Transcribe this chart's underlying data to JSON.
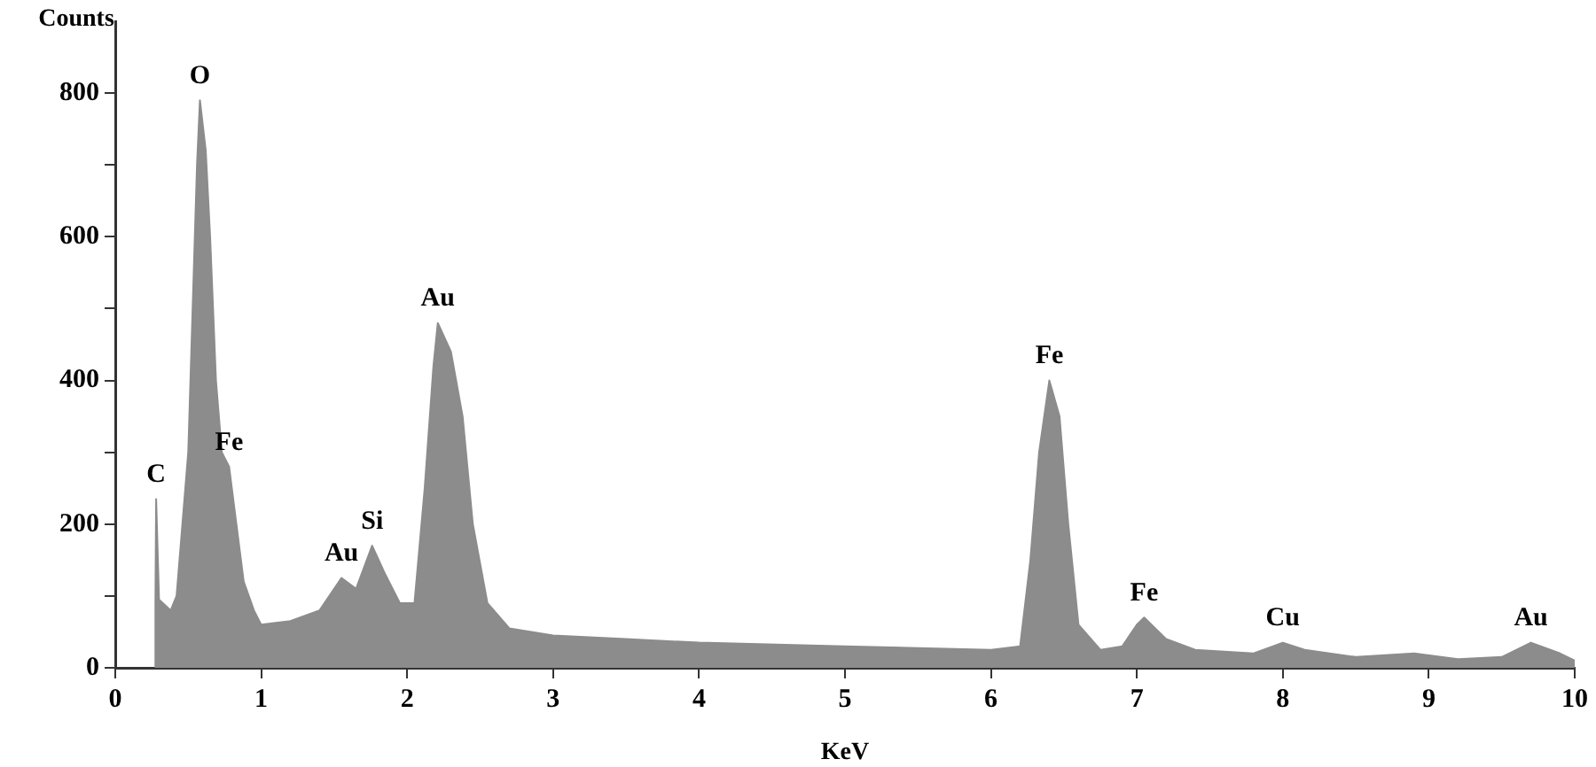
{
  "chart_data": {
    "type": "area",
    "xlabel": "KeV",
    "ylabel": "Counts",
    "x": [
      0.27,
      0.275,
      0.28,
      0.3,
      0.38,
      0.42,
      0.5,
      0.53,
      0.56,
      0.58,
      0.62,
      0.65,
      0.69,
      0.73,
      0.78,
      0.83,
      0.88,
      0.95,
      1.0,
      1.2,
      1.4,
      1.55,
      1.65,
      1.76,
      1.85,
      1.95,
      2.05,
      2.12,
      2.18,
      2.21,
      2.3,
      2.38,
      2.45,
      2.55,
      2.7,
      3.0,
      3.5,
      4.0,
      5.0,
      6.0,
      6.2,
      6.27,
      6.33,
      6.4,
      6.47,
      6.53,
      6.6,
      6.75,
      6.9,
      7.0,
      7.05,
      7.2,
      7.4,
      7.8,
      8.0,
      8.15,
      8.5,
      8.9,
      9.2,
      9.5,
      9.7,
      9.9,
      10.0
    ],
    "series": [
      {
        "color": "#8c8c8c",
        "values": [
          0,
          90,
          235,
          95,
          80,
          100,
          300,
          500,
          700,
          790,
          720,
          600,
          400,
          300,
          280,
          200,
          120,
          80,
          60,
          65,
          80,
          125,
          110,
          170,
          130,
          90,
          90,
          250,
          420,
          480,
          440,
          350,
          200,
          90,
          55,
          45,
          40,
          35,
          30,
          25,
          30,
          150,
          300,
          400,
          350,
          200,
          60,
          25,
          30,
          60,
          70,
          40,
          25,
          20,
          35,
          25,
          15,
          20,
          12,
          15,
          35,
          20,
          10
        ]
      }
    ],
    "xlim": [
      0,
      10
    ],
    "xticks": [
      0,
      1,
      2,
      3,
      4,
      5,
      6,
      7,
      8,
      9,
      10
    ],
    "ylim": [
      0,
      900
    ],
    "yticks": [
      0,
      {
        "value": 100,
        "label": null
      },
      200,
      {
        "value": 300,
        "label": null
      },
      400,
      {
        "value": 500,
        "label": null
      },
      600,
      {
        "value": 700,
        "label": null
      },
      800
    ],
    "grid": false,
    "legend": false,
    "marker": "none",
    "annotations": [
      {
        "text": "O",
        "x": 0.58,
        "y": 790
      },
      {
        "text": "Fe",
        "x": 0.78,
        "y": 280
      },
      {
        "text": "C",
        "x": 0.28,
        "y": 235
      },
      {
        "text": "Au",
        "x": 1.55,
        "y": 125
      },
      {
        "text": "Si",
        "x": 1.76,
        "y": 170
      },
      {
        "text": "Au",
        "x": 2.21,
        "y": 480
      },
      {
        "text": "Fe",
        "x": 6.4,
        "y": 400
      },
      {
        "text": "Fe",
        "x": 7.05,
        "y": 70
      },
      {
        "text": "Cu",
        "x": 8.0,
        "y": 35
      },
      {
        "text": "Au",
        "x": 9.7,
        "y": 35
      }
    ]
  }
}
